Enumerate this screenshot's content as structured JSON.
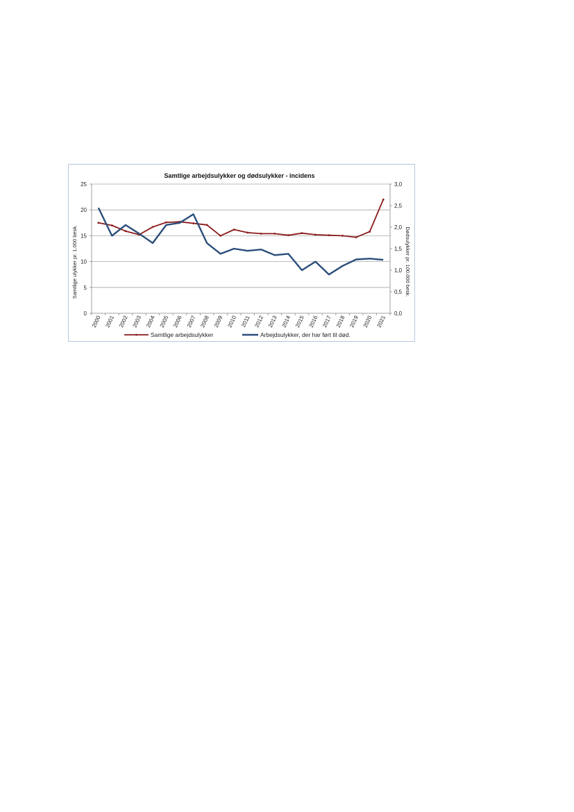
{
  "chart_data": {
    "type": "line",
    "title": "Samtlige arbejdsulykker og dødsulykker - incidens",
    "x": [
      "2000",
      "2001",
      "2002",
      "2003",
      "2004",
      "2005",
      "2006",
      "2007",
      "2008",
      "2009",
      "2010",
      "2011",
      "2012",
      "2013",
      "2014",
      "2015",
      "2016",
      "2017",
      "2018",
      "2019",
      "2020",
      "2021"
    ],
    "ylabel_left": "Samtlige ulykker pr. 1.000 besk.",
    "ylabel_right": "Dødsulykker pr. 100.000 besk.",
    "ylim_left": [
      0,
      25
    ],
    "yticks_left": [
      "0",
      "5",
      "10",
      "15",
      "20",
      "25"
    ],
    "ylim_right": [
      0,
      3
    ],
    "yticks_right": [
      "0,0",
      "0,5",
      "1,0",
      "1,5",
      "2,0",
      "2,5",
      "3,0"
    ],
    "grid": true,
    "legend_position": "bottom",
    "series": [
      {
        "name": "Samtlige arbejdsulykker",
        "axis": "left",
        "color": "#8b1a1a",
        "marker": "small-dot",
        "values": [
          17.5,
          17.0,
          15.9,
          15.2,
          16.7,
          17.6,
          17.7,
          17.4,
          17.1,
          15.0,
          16.2,
          15.6,
          15.4,
          15.4,
          15.1,
          15.5,
          15.2,
          15.1,
          15.0,
          14.7,
          15.8,
          22.0
        ]
      },
      {
        "name": "Arbejdsulykker, der har ført til død.",
        "axis": "right",
        "color": "#2a4d7a",
        "marker": "none",
        "values": [
          2.45,
          1.8,
          2.05,
          1.85,
          1.63,
          2.05,
          2.1,
          2.3,
          1.63,
          1.38,
          1.5,
          1.45,
          1.48,
          1.35,
          1.38,
          1.0,
          1.2,
          0.9,
          1.1,
          1.25,
          1.27,
          1.24
        ]
      }
    ]
  }
}
